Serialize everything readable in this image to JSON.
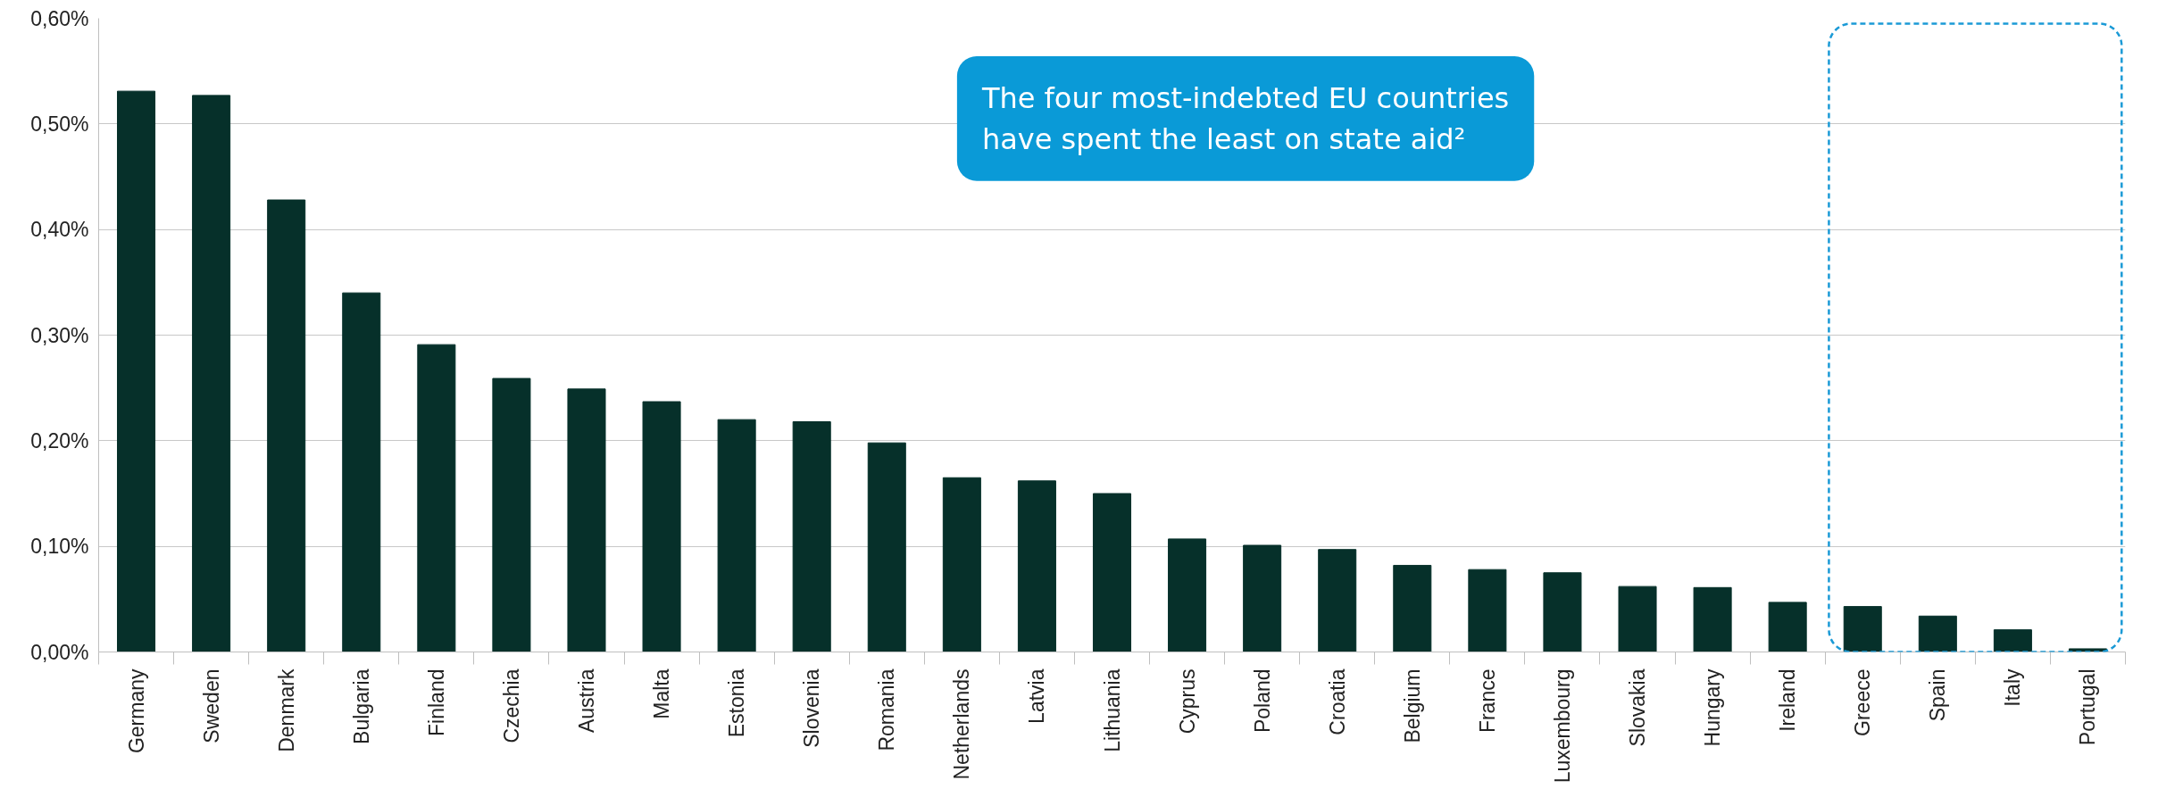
{
  "chart_data": {
    "type": "bar",
    "categories": [
      "Germany",
      "Sweden",
      "Denmark",
      "Bulgaria",
      "Finland",
      "Czechia",
      "Austria",
      "Malta",
      "Estonia",
      "Slovenia",
      "Romania",
      "Netherlands",
      "Latvia",
      "Lithuania",
      "Cyprus",
      "Poland",
      "Croatia",
      "Belgium",
      "France",
      "Luxembourg",
      "Slovakia",
      "Hungary",
      "Ireland",
      "Greece",
      "Spain",
      "Italy",
      "Portugal"
    ],
    "values": [
      0.531,
      0.527,
      0.428,
      0.34,
      0.291,
      0.259,
      0.249,
      0.237,
      0.22,
      0.218,
      0.198,
      0.165,
      0.162,
      0.15,
      0.107,
      0.101,
      0.097,
      0.082,
      0.078,
      0.075,
      0.062,
      0.061,
      0.047,
      0.043,
      0.034,
      0.021,
      0.003
    ],
    "color": "#06302a",
    "ylim": [
      0,
      0.6
    ],
    "yticks": [
      {
        "value": 0,
        "label": "0,00%"
      },
      {
        "value": 0.1,
        "label": "0,10%"
      },
      {
        "value": 0.2,
        "label": "0,20%"
      },
      {
        "value": 0.3,
        "label": "0,30%"
      },
      {
        "value": 0.4,
        "label": "0,40%"
      },
      {
        "value": 0.5,
        "label": "0,50%"
      },
      {
        "value": 0.6,
        "label": "0,60%"
      }
    ],
    "grid": "y",
    "annotations": [
      "The four most-indebted EU countries\nhave spent the least on state aid²"
    ]
  }
}
